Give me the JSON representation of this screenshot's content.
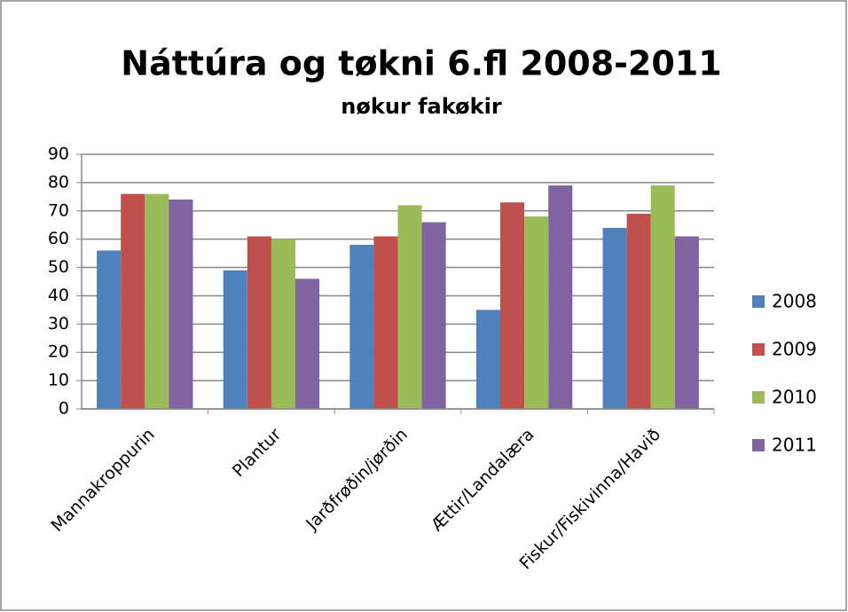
{
  "chart_data": {
    "type": "bar",
    "title": "Náttúra og tøkni 6.fl 2008-2011",
    "subtitle": "nøkur fakøkir",
    "categories": [
      "Mannakroppurin",
      "Plantur",
      "Jarðfrøðin/jørðin",
      "Ættir/Landalæra",
      "Fiskur/Fiskivinna/Havið"
    ],
    "series": [
      {
        "name": "2008",
        "color": "#4f81bd",
        "values": [
          56,
          49,
          58,
          35,
          64
        ]
      },
      {
        "name": "2009",
        "color": "#c0504d",
        "values": [
          76,
          61,
          61,
          73,
          69
        ]
      },
      {
        "name": "2010",
        "color": "#9bbb59",
        "values": [
          76,
          60,
          72,
          68,
          79
        ]
      },
      {
        "name": "2011",
        "color": "#8064a2",
        "values": [
          74,
          46,
          66,
          79,
          61
        ]
      }
    ],
    "ylim": [
      0,
      90
    ],
    "yticks": [
      0,
      10,
      20,
      30,
      40,
      50,
      60,
      70,
      80,
      90
    ],
    "grid": true,
    "legend": "right"
  }
}
